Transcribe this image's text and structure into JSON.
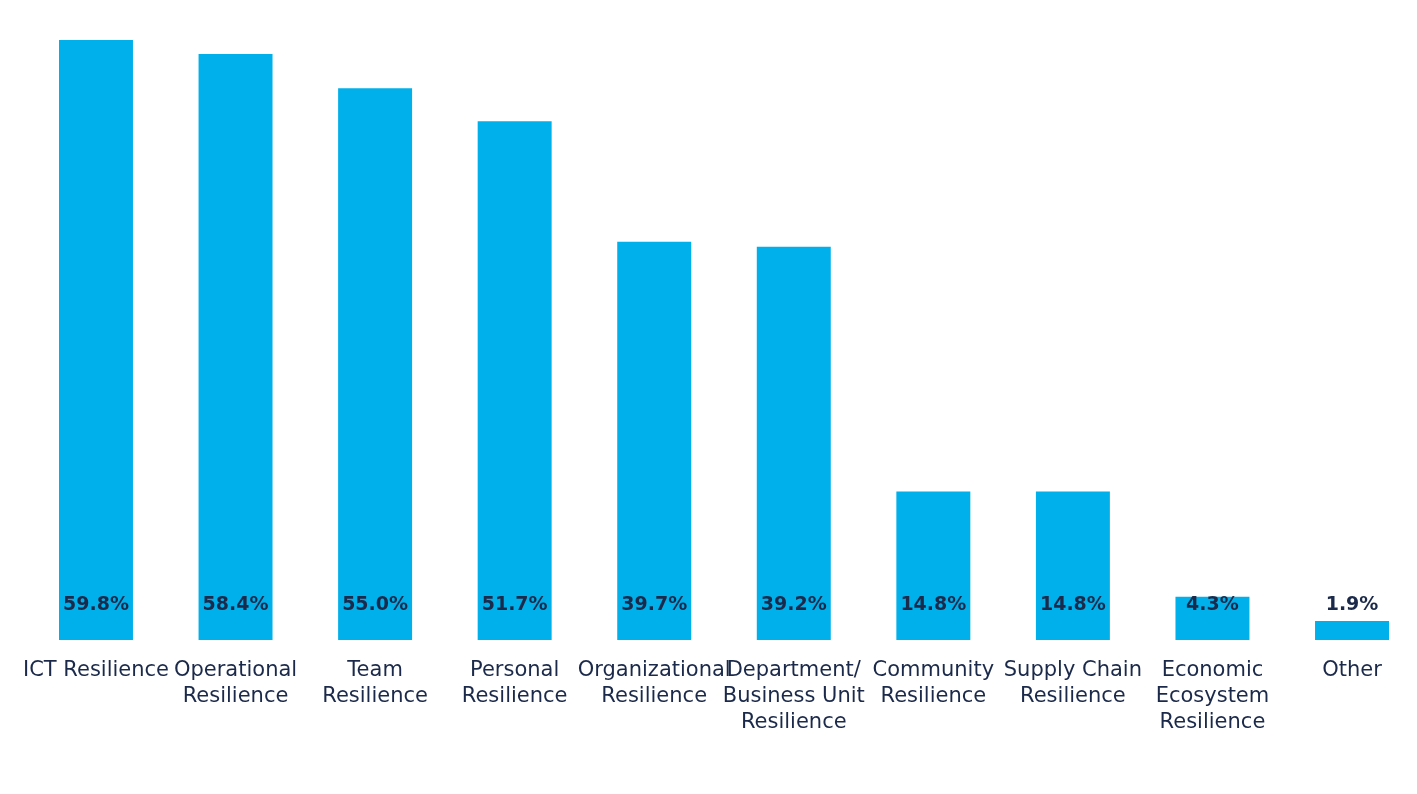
{
  "chart_data": {
    "type": "bar",
    "categories": [
      "ICT Resilience",
      "Operational Resilience",
      "Team Resilience",
      "Personal Resilience",
      "Organizational Resilience",
      "Department/ Business Unit Resilience",
      "Community Resilience",
      "Supply Chain Resilience",
      "Economic Ecosystem Resilience",
      "Other"
    ],
    "values": [
      59.8,
      58.4,
      55.0,
      51.7,
      39.7,
      39.2,
      14.8,
      14.8,
      4.3,
      1.9
    ],
    "value_labels": [
      "59.8%",
      "58.4%",
      "55.0%",
      "51.7%",
      "39.7%",
      "39.2%",
      "14.8%",
      "14.8%",
      "4.3%",
      "1.9%"
    ],
    "color": "#00b0ea"
  }
}
